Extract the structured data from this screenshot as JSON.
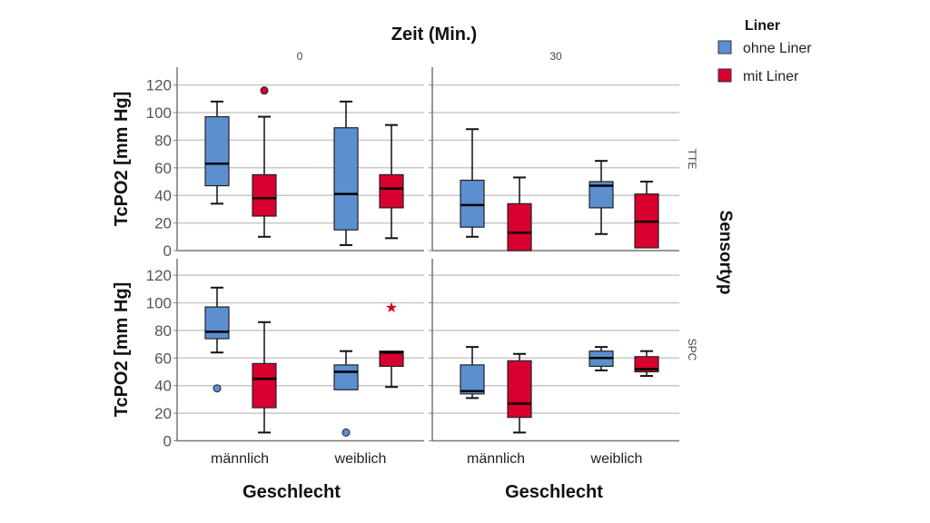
{
  "chart_data": {
    "type": "boxplot",
    "title": "Zeit (Min.)",
    "ylabel": "TcPO2 [mm Hg]",
    "xlabel": "Geschlecht",
    "row_label": "Sensortyp",
    "ylim": [
      0,
      130
    ],
    "yticks": [
      0,
      20,
      40,
      60,
      80,
      100,
      120
    ],
    "grid": true,
    "legend": {
      "title": "Liner",
      "position": "top-right",
      "entries": [
        {
          "name": "ohne Liner",
          "color": "#5b8fcf"
        },
        {
          "name": "mit Liner",
          "color": "#d7002f"
        }
      ]
    },
    "columns": [
      "0",
      "30"
    ],
    "rows": [
      "TTE",
      "SPC"
    ],
    "categories": [
      "männlich",
      "weiblich"
    ],
    "panels": [
      {
        "row": "TTE",
        "column": "0",
        "boxes": [
          {
            "category": "männlich",
            "series": "ohne Liner",
            "whisker_low": 34,
            "q1": 47,
            "median": 63,
            "q3": 97,
            "whisker_high": 108,
            "outliers": []
          },
          {
            "category": "männlich",
            "series": "mit Liner",
            "whisker_low": 10,
            "q1": 25,
            "median": 38,
            "q3": 55,
            "whisker_high": 97,
            "outliers": [
              {
                "value": 116,
                "marker": "circle"
              }
            ]
          },
          {
            "category": "weiblich",
            "series": "ohne Liner",
            "whisker_low": 4,
            "q1": 15,
            "median": 41,
            "q3": 89,
            "whisker_high": 108,
            "outliers": []
          },
          {
            "category": "weiblich",
            "series": "mit Liner",
            "whisker_low": 9,
            "q1": 31,
            "median": 45,
            "q3": 55,
            "whisker_high": 91,
            "outliers": []
          }
        ]
      },
      {
        "row": "TTE",
        "column": "30",
        "boxes": [
          {
            "category": "männlich",
            "series": "ohne Liner",
            "whisker_low": 10,
            "q1": 17,
            "median": 33,
            "q3": 51,
            "whisker_high": 88,
            "outliers": []
          },
          {
            "category": "männlich",
            "series": "mit Liner",
            "whisker_low": 0,
            "q1": 0,
            "median": 13,
            "q3": 34,
            "whisker_high": 53,
            "outliers": []
          },
          {
            "category": "weiblich",
            "series": "ohne Liner",
            "whisker_low": 12,
            "q1": 31,
            "median": 47,
            "q3": 50,
            "whisker_high": 65,
            "outliers": []
          },
          {
            "category": "weiblich",
            "series": "mit Liner",
            "whisker_low": 2,
            "q1": 2,
            "median": 21,
            "q3": 41,
            "whisker_high": 50,
            "outliers": []
          }
        ]
      },
      {
        "row": "SPC",
        "column": "0",
        "boxes": [
          {
            "category": "männlich",
            "series": "ohne Liner",
            "whisker_low": 64,
            "q1": 74,
            "median": 79,
            "q3": 97,
            "whisker_high": 111,
            "outliers": [
              {
                "value": 38,
                "marker": "circle"
              }
            ]
          },
          {
            "category": "männlich",
            "series": "mit Liner",
            "whisker_low": 6,
            "q1": 24,
            "median": 45,
            "q3": 56,
            "whisker_high": 86,
            "outliers": []
          },
          {
            "category": "weiblich",
            "series": "ohne Liner",
            "whisker_low": 37,
            "q1": 37,
            "median": 50,
            "q3": 55,
            "whisker_high": 65,
            "outliers": [
              {
                "value": 6,
                "marker": "circle"
              }
            ]
          },
          {
            "category": "weiblich",
            "series": "mit Liner",
            "whisker_low": 39,
            "q1": 54,
            "median": 64,
            "q3": 65,
            "whisker_high": 65,
            "outliers": [
              {
                "value": 97,
                "marker": "star"
              }
            ]
          }
        ]
      },
      {
        "row": "SPC",
        "column": "30",
        "boxes": [
          {
            "category": "männlich",
            "series": "ohne Liner",
            "whisker_low": 31,
            "q1": 34,
            "median": 36,
            "q3": 55,
            "whisker_high": 68,
            "outliers": []
          },
          {
            "category": "männlich",
            "series": "mit Liner",
            "whisker_low": 6,
            "q1": 17,
            "median": 27,
            "q3": 58,
            "whisker_high": 63,
            "outliers": []
          },
          {
            "category": "weiblich",
            "series": "ohne Liner",
            "whisker_low": 51,
            "q1": 54,
            "median": 60,
            "q3": 65,
            "whisker_high": 68,
            "outliers": []
          },
          {
            "category": "weiblich",
            "series": "mit Liner",
            "whisker_low": 47,
            "q1": 50,
            "median": 52,
            "q3": 61,
            "whisker_high": 65,
            "outliers": []
          }
        ]
      }
    ]
  }
}
